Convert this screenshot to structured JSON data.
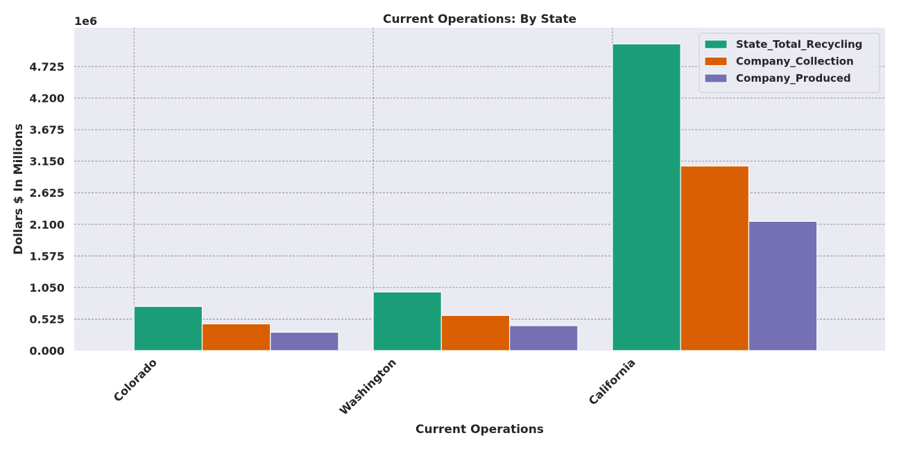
{
  "chart_data": {
    "type": "bar",
    "title": "Current Operations: By State",
    "xlabel": "Current Operations",
    "ylabel": "Dollars $ In Millions",
    "offset_label": "1e6",
    "categories": [
      "Colorado",
      "Washington",
      "California"
    ],
    "series": [
      {
        "name": "State_Total_Recycling",
        "color": "#1b9e77",
        "values": [
          735000,
          975000,
          5100000
        ]
      },
      {
        "name": "Company_Collection",
        "color": "#d95f02",
        "values": [
          445000,
          585000,
          3070000
        ]
      },
      {
        "name": "Company_Produced",
        "color": "#7570b3",
        "values": [
          305000,
          415000,
          2150000
        ]
      }
    ],
    "yticks": [
      "0.000",
      "0.525",
      "1.050",
      "1.575",
      "2.100",
      "2.625",
      "3.150",
      "3.675",
      "4.200",
      "4.725"
    ],
    "ytick_values": [
      0,
      525000,
      1050000,
      1575000,
      2100000,
      2625000,
      3150000,
      3675000,
      4200000,
      4725000
    ],
    "ylim": [
      0,
      5370000
    ],
    "grid": true,
    "legend_position": "top-right"
  }
}
